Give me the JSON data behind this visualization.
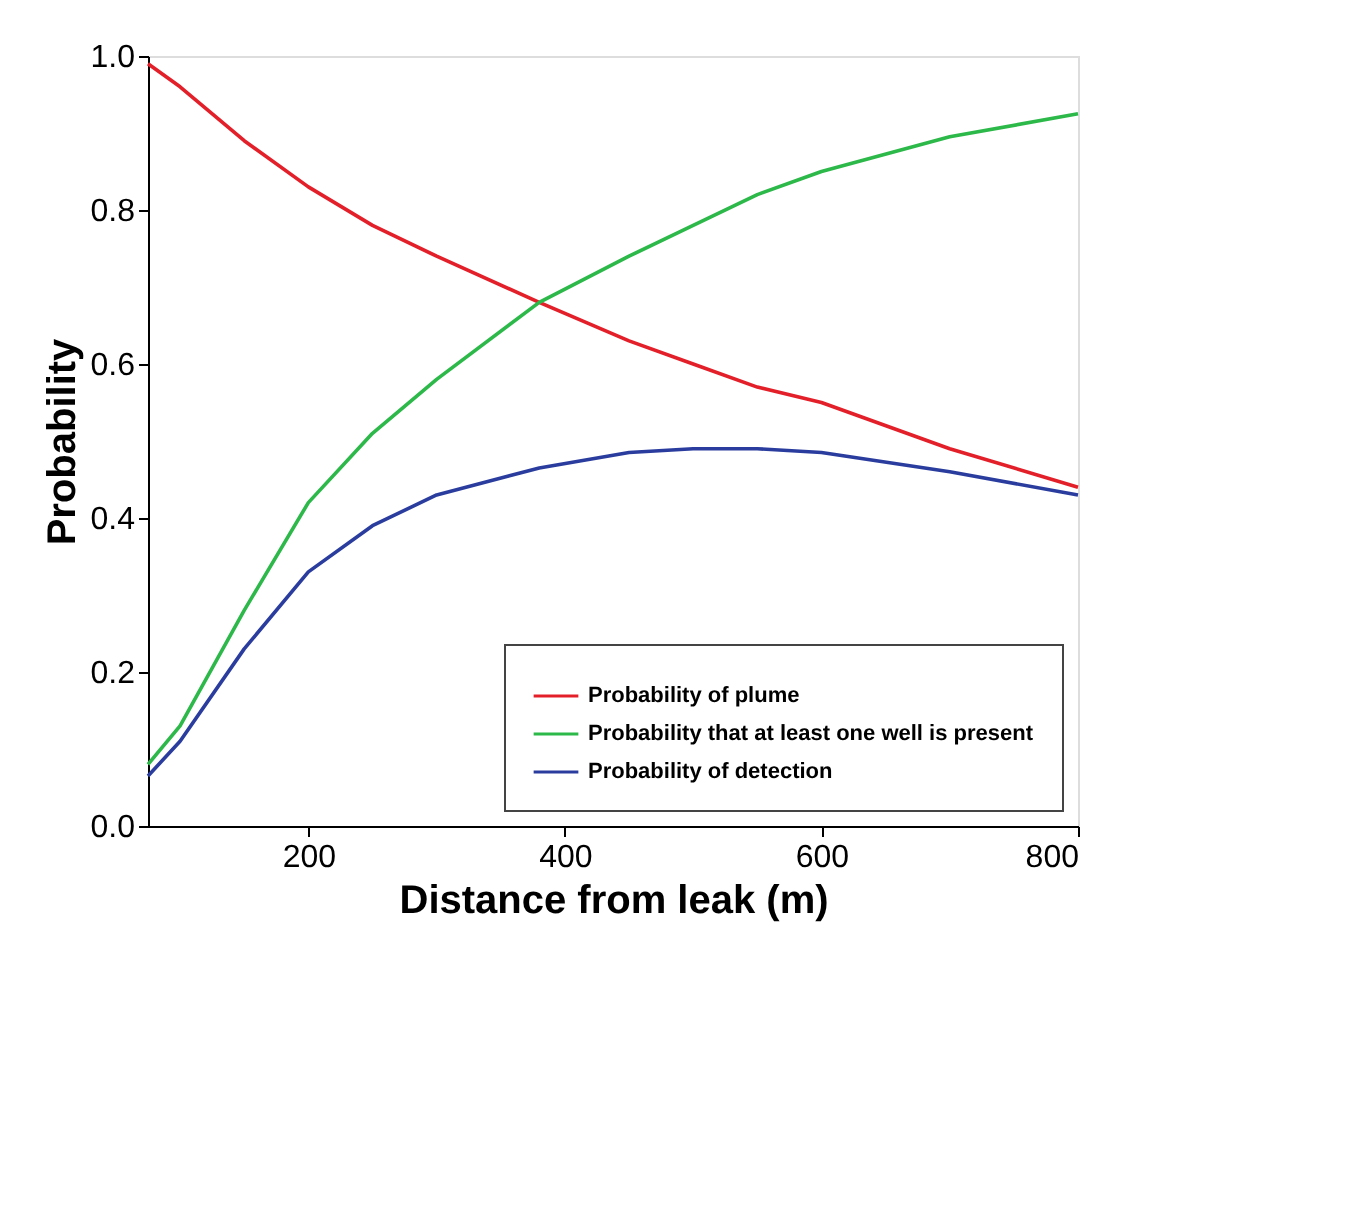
{
  "chart_data": {
    "type": "line",
    "xlabel": "Distance from leak (m)",
    "ylabel": "Probability",
    "xlim": [
      75,
      800
    ],
    "ylim": [
      0,
      1
    ],
    "xticks": [
      200,
      400,
      600,
      800
    ],
    "yticks": [
      {
        "value": 0,
        "label": "0.0"
      },
      {
        "value": 0.2,
        "label": "0.2"
      },
      {
        "value": 0.4,
        "label": "0.4"
      },
      {
        "value": 0.6,
        "label": "0.6"
      },
      {
        "value": 0.8,
        "label": "0.8"
      },
      {
        "value": 1,
        "label": "1.0"
      }
    ],
    "x": [
      75,
      100,
      150,
      200,
      250,
      300,
      380,
      450,
      500,
      550,
      600,
      700,
      800
    ],
    "series": [
      {
        "name": "Probability of plume",
        "color": "#e3202a",
        "values": [
          0.99,
          0.96,
          0.89,
          0.83,
          0.78,
          0.74,
          0.68,
          0.63,
          0.6,
          0.57,
          0.55,
          0.49,
          0.44
        ]
      },
      {
        "name": "Probability that at least one well is present",
        "color": "#2db84a",
        "values": [
          0.08,
          0.13,
          0.28,
          0.42,
          0.51,
          0.58,
          0.68,
          0.74,
          0.78,
          0.82,
          0.85,
          0.895,
          0.925
        ]
      },
      {
        "name": "Probability of detection",
        "color": "#2a3d9e",
        "values": [
          0.065,
          0.11,
          0.23,
          0.33,
          0.39,
          0.43,
          0.465,
          0.485,
          0.49,
          0.49,
          0.485,
          0.46,
          0.43
        ]
      }
    ],
    "grid": false,
    "legend": "bottom right",
    "marker": "none",
    "line_style": "solid"
  }
}
